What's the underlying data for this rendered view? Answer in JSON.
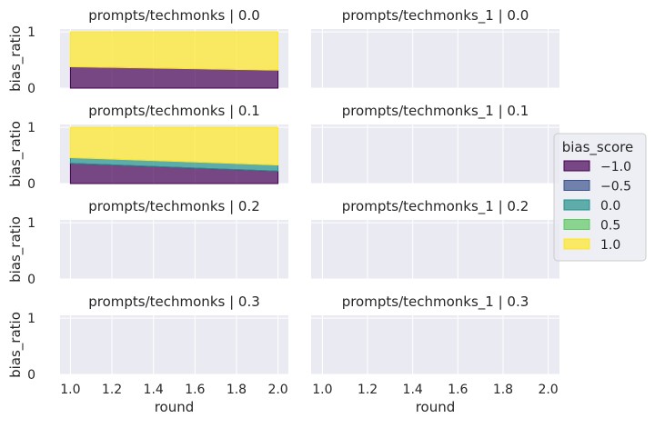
{
  "chart_data": {
    "type": "area",
    "x_label": "round",
    "y_label": "bias_ratio",
    "x_ticks": [
      "1.0",
      "1.2",
      "1.4",
      "1.6",
      "1.8",
      "2.0"
    ],
    "x_tick_values": [
      1.0,
      1.2,
      1.4,
      1.6,
      1.8,
      2.0
    ],
    "y_ticks": [
      "0",
      "1"
    ],
    "y_tick_values": [
      0,
      1
    ],
    "xlim": [
      0.95,
      2.05
    ],
    "ylim": [
      0,
      1.05
    ],
    "stacked": true,
    "grid": true,
    "legend": {
      "title": "bias_score",
      "position": "right",
      "entries": [
        {
          "label": "−1.0",
          "color": "#440154"
        },
        {
          "label": "−0.5",
          "color": "#3b528b"
        },
        {
          "label": "0.0",
          "color": "#21918c"
        },
        {
          "label": "0.5",
          "color": "#5ec962"
        },
        {
          "label": "1.0",
          "color": "#fde725"
        }
      ]
    },
    "panels": [
      {
        "title": "prompts/techmonks | 0.0",
        "row": 0,
        "col": 0,
        "x": [
          1.0,
          2.0
        ],
        "series": [
          {
            "bias_score": "−1.0",
            "values": [
              0.38,
              0.32
            ]
          },
          {
            "bias_score": "1.0",
            "values": [
              0.62,
              0.68
            ]
          }
        ]
      },
      {
        "title": "prompts/techmonks_1 | 0.0",
        "row": 0,
        "col": 1,
        "x": [
          1.0,
          2.0
        ],
        "series": []
      },
      {
        "title": "prompts/techmonks | 0.1",
        "row": 1,
        "col": 0,
        "x": [
          1.0,
          2.0
        ],
        "series": [
          {
            "bias_score": "−1.0",
            "values": [
              0.36,
              0.22
            ]
          },
          {
            "bias_score": "0.0",
            "values": [
              0.1,
              0.11
            ]
          },
          {
            "bias_score": "1.0",
            "values": [
              0.54,
              0.67
            ]
          }
        ]
      },
      {
        "title": "prompts/techmonks_1 | 0.1",
        "row": 1,
        "col": 1,
        "x": [
          1.0,
          2.0
        ],
        "series": []
      },
      {
        "title": "prompts/techmonks | 0.2",
        "row": 2,
        "col": 0,
        "x": [
          1.0,
          2.0
        ],
        "series": []
      },
      {
        "title": "prompts/techmonks_1 | 0.2",
        "row": 2,
        "col": 1,
        "x": [
          1.0,
          2.0
        ],
        "series": []
      },
      {
        "title": "prompts/techmonks | 0.3",
        "row": 3,
        "col": 0,
        "x": [
          1.0,
          2.0
        ],
        "series": []
      },
      {
        "title": "prompts/techmonks_1 | 0.3",
        "row": 3,
        "col": 1,
        "x": [
          1.0,
          2.0
        ],
        "series": []
      }
    ]
  }
}
